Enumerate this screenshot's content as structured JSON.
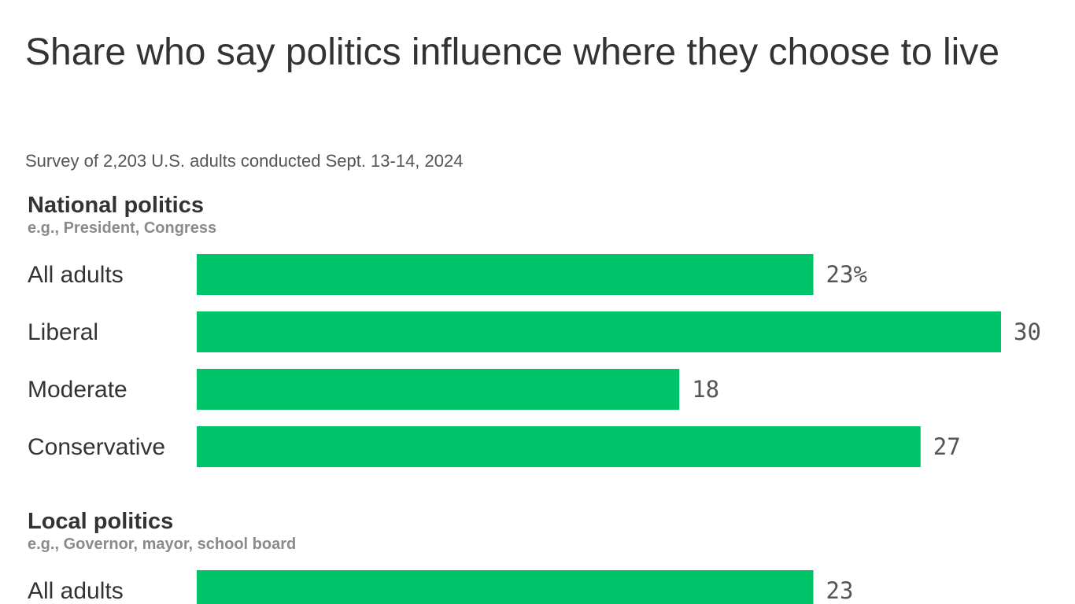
{
  "title": "Share who say politics influence where they choose to live",
  "subtitle": "Survey of 2,203 U.S. adults conducted Sept. 13-14, 2024",
  "colors": {
    "bar": "#00c46a",
    "text": "#333333",
    "note": "#8a8a8a",
    "value": "#555555"
  },
  "chart_data": [
    {
      "type": "bar",
      "orientation": "horizontal",
      "title": "National politics",
      "note": "e.g., President, Congress",
      "categories": [
        "All adults",
        "Liberal",
        "Moderate",
        "Conservative"
      ],
      "values": [
        23,
        30,
        18,
        27
      ],
      "value_labels": [
        "23%",
        "30",
        "18",
        "27"
      ],
      "unit": "%",
      "xlim": [
        0,
        30
      ]
    },
    {
      "type": "bar",
      "orientation": "horizontal",
      "title": "Local politics",
      "note": "e.g., Governor, mayor, school board",
      "categories": [
        "All adults"
      ],
      "values": [
        23
      ],
      "value_labels": [
        "23"
      ],
      "unit": "%",
      "xlim": [
        0,
        30
      ]
    }
  ]
}
